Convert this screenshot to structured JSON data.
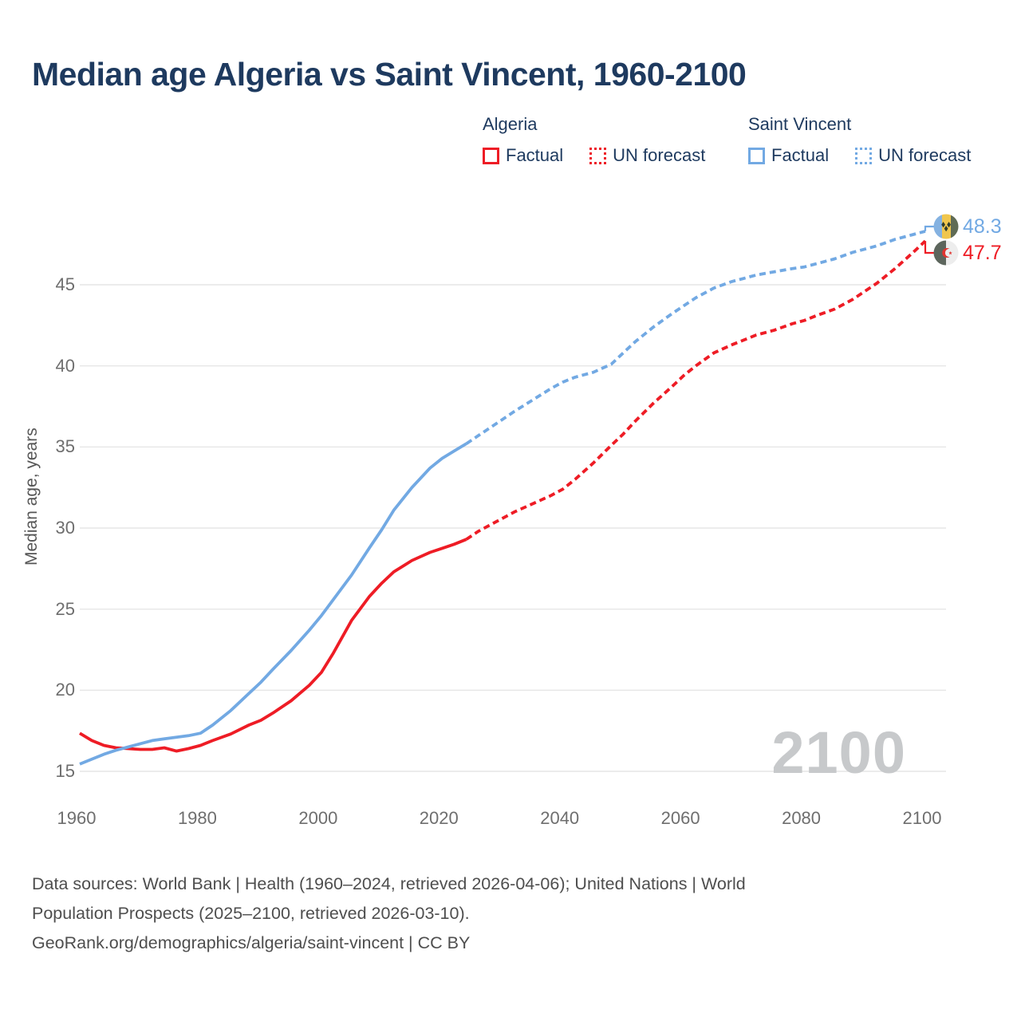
{
  "page": {
    "title": "Median age Algeria vs Saint Vincent, 1960-2100"
  },
  "colors": {
    "algeria": "#ee1c25",
    "saint_vincent": "#72a9e3",
    "title_navy": "#1e3a5f",
    "grid": "#e6e6e6",
    "tick_gray": "#6e6e6e",
    "watermark_gray": "#c7c9cb"
  },
  "legend": {
    "groups": [
      {
        "name": "Algeria",
        "color": "#ee1c25",
        "items": [
          {
            "label": "Factual",
            "style": "solid"
          },
          {
            "label": "UN forecast",
            "style": "dotted"
          }
        ]
      },
      {
        "name": "Saint Vincent",
        "color": "#72a9e3",
        "items": [
          {
            "label": "Factual",
            "style": "solid"
          },
          {
            "label": "UN forecast",
            "style": "dotted"
          }
        ]
      }
    ]
  },
  "chart_data": {
    "type": "line",
    "title": "Median age Algeria vs Saint Vincent, 1960-2100",
    "xlabel": "",
    "ylabel": "Median age, years",
    "xlim": [
      1960,
      2100
    ],
    "ylim": [
      15,
      45
    ],
    "x_ticks": [
      1960,
      1980,
      2000,
      2020,
      2040,
      2060,
      2080,
      2100
    ],
    "y_ticks": [
      15,
      20,
      25,
      30,
      35,
      40,
      45
    ],
    "grid": "horizontal",
    "legend_position": "top",
    "watermark": "2100",
    "series": [
      {
        "name": "Algeria factual",
        "color": "#ee1c25",
        "dash": "solid",
        "points": [
          [
            1960,
            17.35
          ],
          [
            1962,
            16.9
          ],
          [
            1964,
            16.6
          ],
          [
            1966,
            16.45
          ],
          [
            1968,
            16.4
          ],
          [
            1970,
            16.35
          ],
          [
            1972,
            16.35
          ],
          [
            1974,
            16.45
          ],
          [
            1976,
            16.25
          ],
          [
            1978,
            16.4
          ],
          [
            1980,
            16.6
          ],
          [
            1982,
            16.9
          ],
          [
            1985,
            17.3
          ],
          [
            1988,
            17.85
          ],
          [
            1990,
            18.15
          ],
          [
            1992,
            18.6
          ],
          [
            1995,
            19.35
          ],
          [
            1998,
            20.3
          ],
          [
            2000,
            21.1
          ],
          [
            2002,
            22.3
          ],
          [
            2005,
            24.3
          ],
          [
            2008,
            25.8
          ],
          [
            2010,
            26.6
          ],
          [
            2012,
            27.3
          ],
          [
            2015,
            28.0
          ],
          [
            2018,
            28.5
          ],
          [
            2020,
            28.75
          ],
          [
            2022,
            29.0
          ],
          [
            2024,
            29.3
          ]
        ]
      },
      {
        "name": "Algeria UN forecast",
        "color": "#ee1c25",
        "dash": "dashed",
        "points": [
          [
            2024,
            29.3
          ],
          [
            2026,
            29.8
          ],
          [
            2028,
            30.2
          ],
          [
            2030,
            30.6
          ],
          [
            2032,
            31.0
          ],
          [
            2035,
            31.5
          ],
          [
            2038,
            32.0
          ],
          [
            2040,
            32.4
          ],
          [
            2042,
            33.0
          ],
          [
            2045,
            34.0
          ],
          [
            2048,
            35.1
          ],
          [
            2050,
            35.8
          ],
          [
            2052,
            36.6
          ],
          [
            2055,
            37.7
          ],
          [
            2058,
            38.7
          ],
          [
            2060,
            39.4
          ],
          [
            2062,
            40.0
          ],
          [
            2065,
            40.8
          ],
          [
            2068,
            41.3
          ],
          [
            2070,
            41.6
          ],
          [
            2072,
            41.9
          ],
          [
            2075,
            42.2
          ],
          [
            2078,
            42.6
          ],
          [
            2080,
            42.8
          ],
          [
            2082,
            43.1
          ],
          [
            2085,
            43.5
          ],
          [
            2088,
            44.1
          ],
          [
            2090,
            44.6
          ],
          [
            2092,
            45.1
          ],
          [
            2095,
            46.0
          ],
          [
            2098,
            47.0
          ],
          [
            2100,
            47.7
          ]
        ]
      },
      {
        "name": "Saint Vincent factual",
        "color": "#72a9e3",
        "dash": "solid",
        "points": [
          [
            1960,
            15.45
          ],
          [
            1962,
            15.75
          ],
          [
            1964,
            16.05
          ],
          [
            1966,
            16.3
          ],
          [
            1968,
            16.5
          ],
          [
            1970,
            16.7
          ],
          [
            1972,
            16.9
          ],
          [
            1974,
            17.0
          ],
          [
            1976,
            17.1
          ],
          [
            1978,
            17.2
          ],
          [
            1980,
            17.35
          ],
          [
            1982,
            17.85
          ],
          [
            1985,
            18.75
          ],
          [
            1988,
            19.8
          ],
          [
            1990,
            20.5
          ],
          [
            1992,
            21.3
          ],
          [
            1995,
            22.45
          ],
          [
            1998,
            23.7
          ],
          [
            2000,
            24.6
          ],
          [
            2002,
            25.6
          ],
          [
            2005,
            27.1
          ],
          [
            2008,
            28.8
          ],
          [
            2010,
            29.9
          ],
          [
            2012,
            31.1
          ],
          [
            2015,
            32.5
          ],
          [
            2018,
            33.7
          ],
          [
            2020,
            34.3
          ],
          [
            2022,
            34.75
          ],
          [
            2024,
            35.2
          ]
        ]
      },
      {
        "name": "Saint Vincent UN forecast",
        "color": "#72a9e3",
        "dash": "dashed",
        "points": [
          [
            2024,
            35.2
          ],
          [
            2026,
            35.7
          ],
          [
            2028,
            36.2
          ],
          [
            2030,
            36.7
          ],
          [
            2032,
            37.2
          ],
          [
            2035,
            37.9
          ],
          [
            2038,
            38.6
          ],
          [
            2040,
            39.0
          ],
          [
            2042,
            39.3
          ],
          [
            2045,
            39.6
          ],
          [
            2048,
            40.1
          ],
          [
            2050,
            40.8
          ],
          [
            2052,
            41.5
          ],
          [
            2055,
            42.4
          ],
          [
            2058,
            43.2
          ],
          [
            2060,
            43.7
          ],
          [
            2062,
            44.2
          ],
          [
            2065,
            44.8
          ],
          [
            2068,
            45.2
          ],
          [
            2070,
            45.4
          ],
          [
            2072,
            45.6
          ],
          [
            2075,
            45.8
          ],
          [
            2078,
            46.0
          ],
          [
            2080,
            46.1
          ],
          [
            2082,
            46.3
          ],
          [
            2085,
            46.6
          ],
          [
            2088,
            47.0
          ],
          [
            2090,
            47.2
          ],
          [
            2092,
            47.4
          ],
          [
            2095,
            47.8
          ],
          [
            2098,
            48.1
          ],
          [
            2100,
            48.3
          ]
        ]
      }
    ],
    "end_labels": [
      {
        "series": "Saint Vincent",
        "value": "48.3",
        "color": "#72a9e3",
        "flag": "saint-vincent"
      },
      {
        "series": "Algeria",
        "value": "47.7",
        "color": "#ee1c25",
        "flag": "algeria"
      }
    ]
  },
  "footer": {
    "lines": [
      "Data sources: World Bank | Health (1960–2024, retrieved 2026-04-06); United Nations | World",
      "Population Prospects (2025–2100, retrieved 2026-03-10).",
      "GeoRank.org/demographics/algeria/saint-vincent | CC BY"
    ]
  }
}
